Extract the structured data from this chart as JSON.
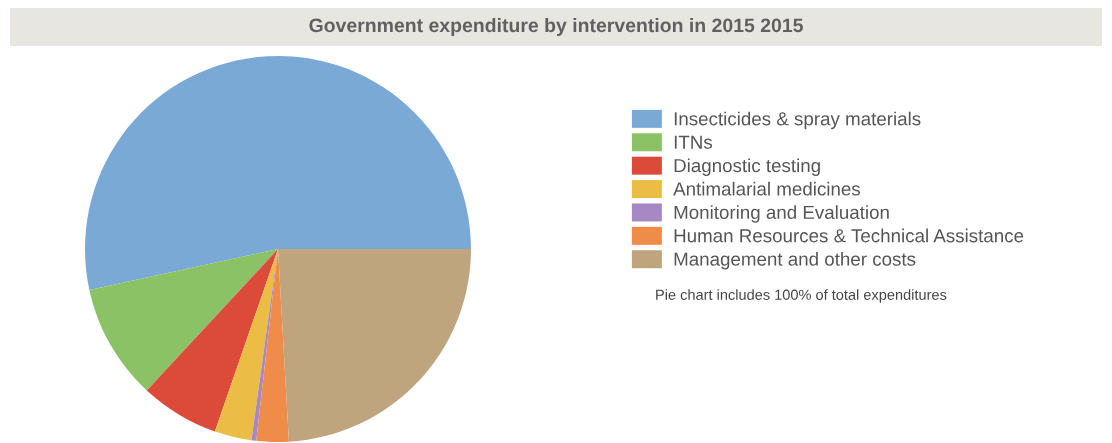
{
  "chart_data": {
    "type": "pie",
    "title": "Government expenditure by intervention in 2015 2015",
    "categories": [
      "Insecticides & spray materials",
      "ITNs",
      "Diagnostic testing",
      "Antimalarial medicines",
      "Monitoring and Evaluation",
      "Human Resources & Technical Assistance",
      "Management and other costs"
    ],
    "values": [
      53.4,
      9.7,
      6.6,
      3.1,
      0.4,
      2.7,
      24.1
    ],
    "colors": [
      "#7ba9d6",
      "#8cc266",
      "#dc4b3a",
      "#ebbd45",
      "#a688c4",
      "#f08c4a",
      "#bfa57e"
    ],
    "legend": "right",
    "annotations": [
      "Pie chart includes 100% of total expenditures"
    ]
  }
}
